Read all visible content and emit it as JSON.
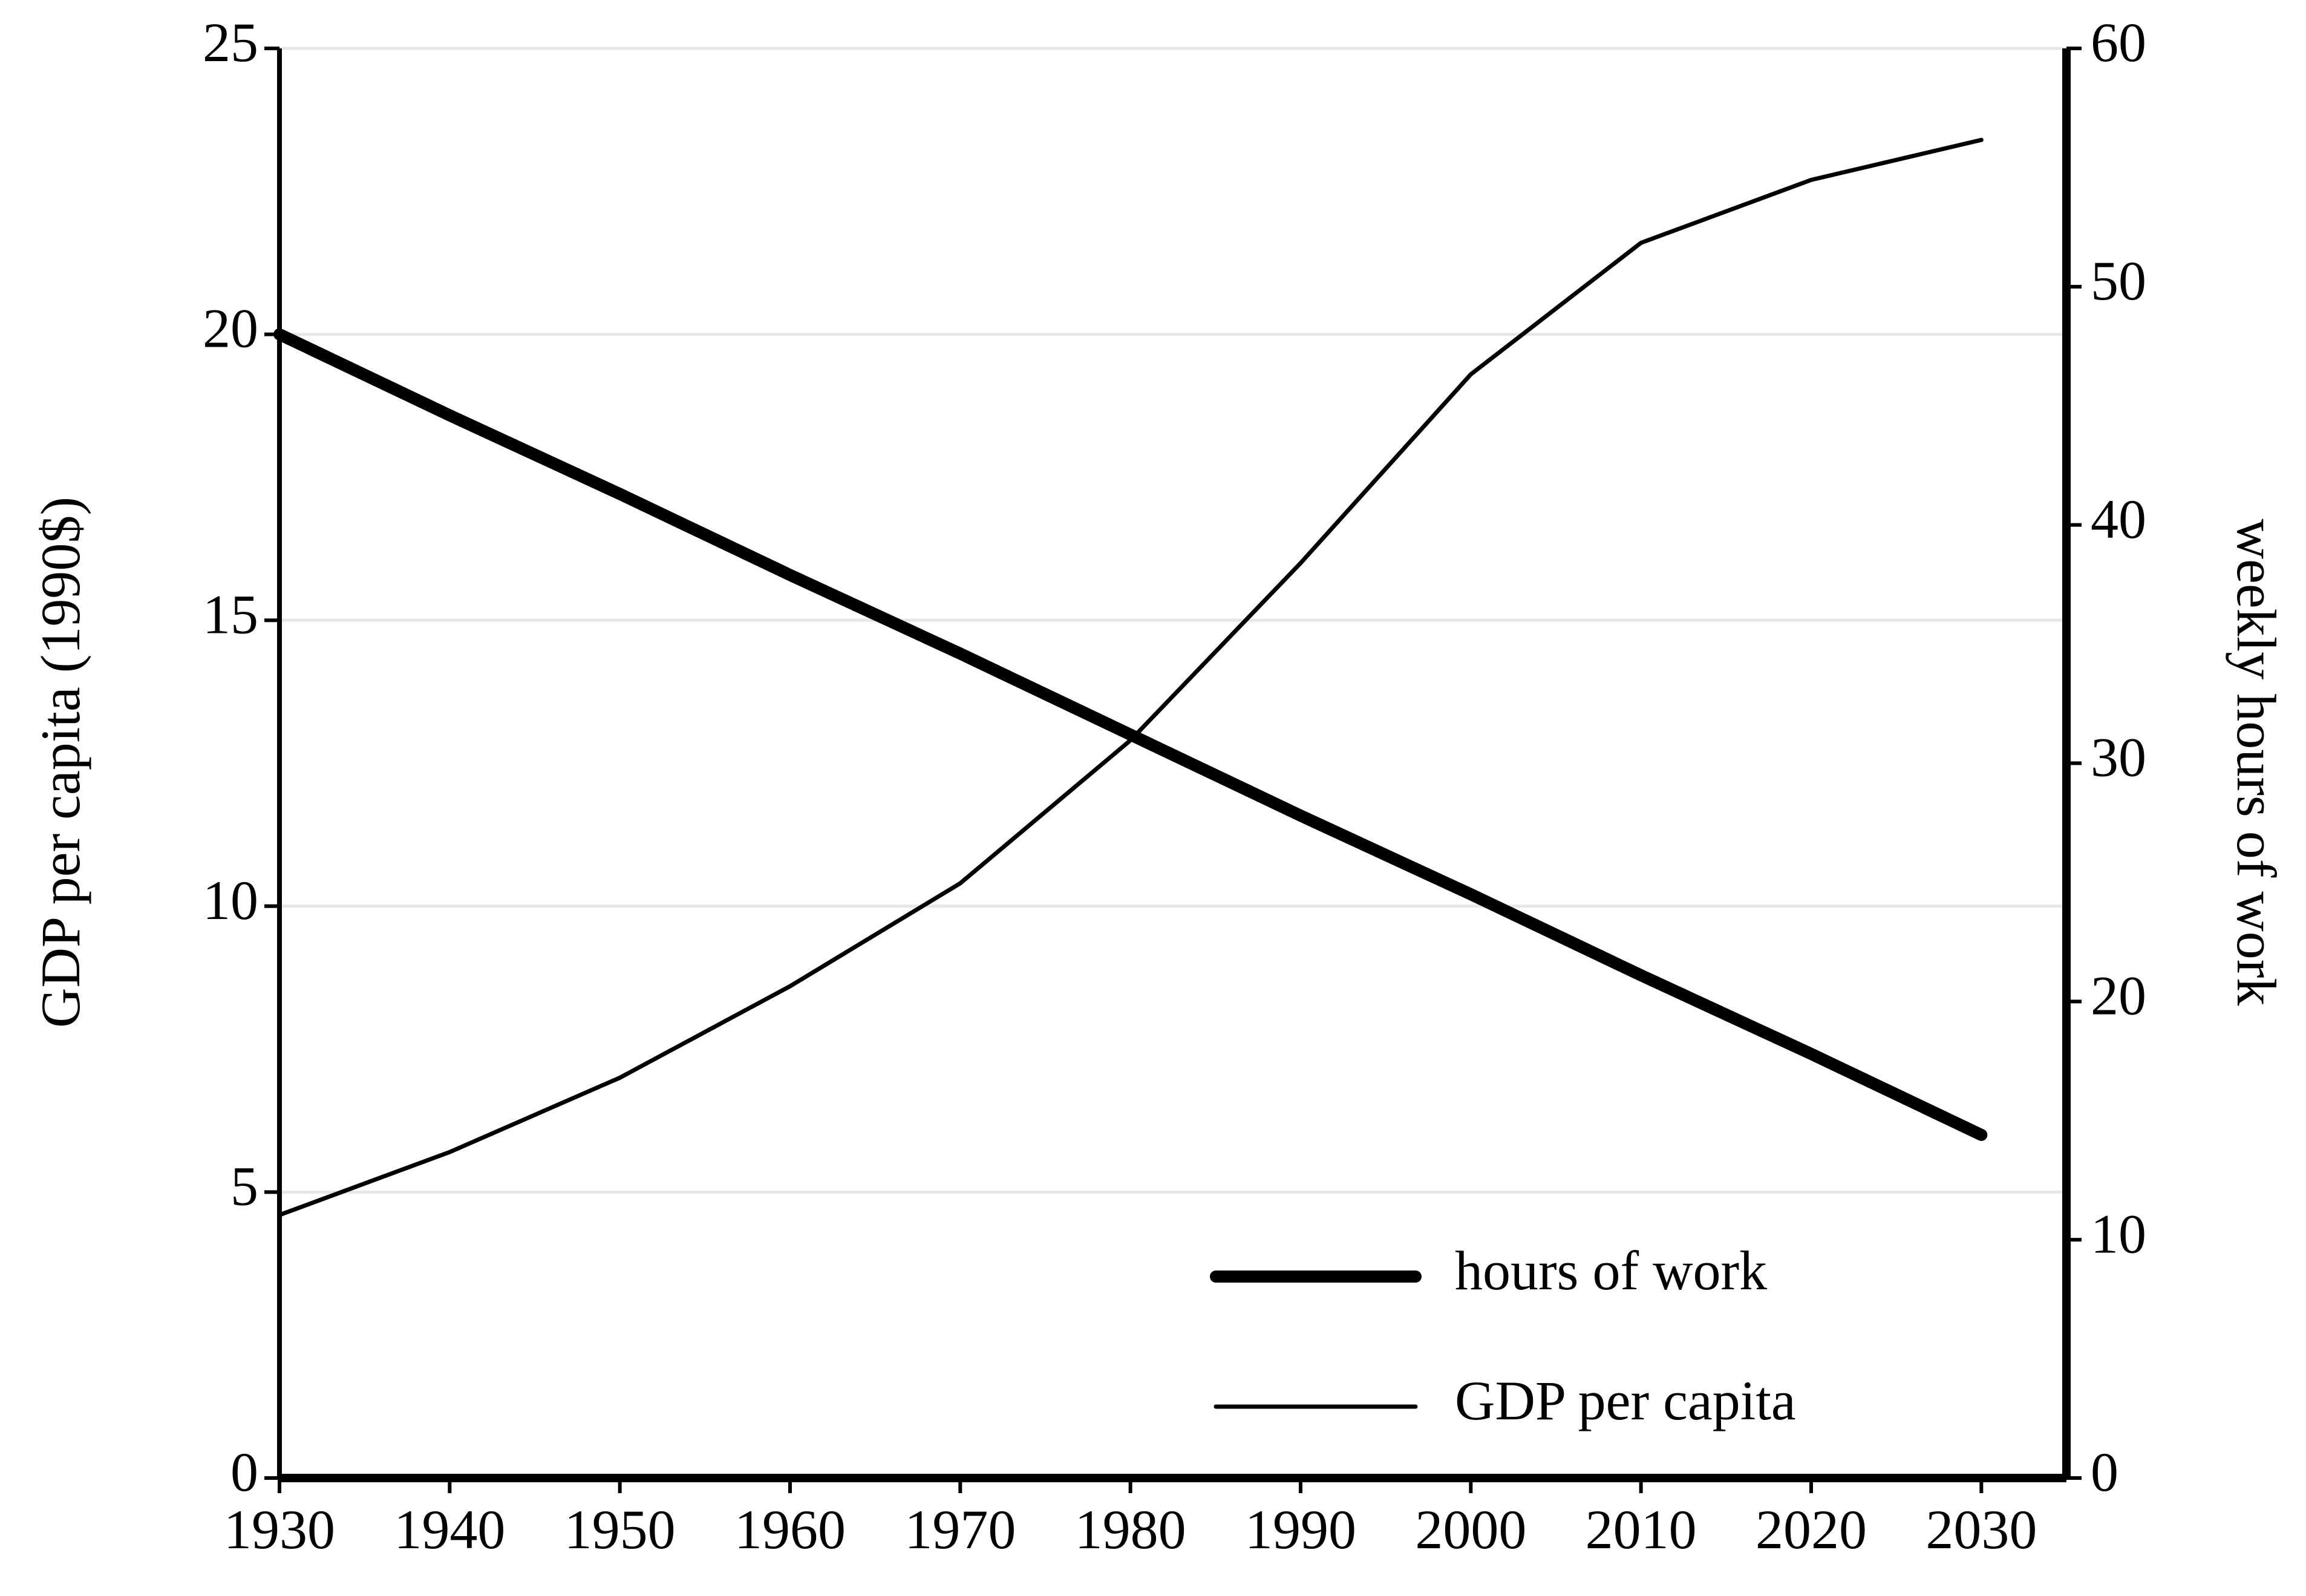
{
  "chart_data": {
    "type": "line",
    "x": [
      1930,
      1940,
      1950,
      1960,
      1970,
      1980,
      1990,
      2000,
      2010,
      2020,
      2030
    ],
    "xlim": [
      1930,
      2035
    ],
    "xticks": [
      1930,
      1940,
      1950,
      1960,
      1970,
      1980,
      1990,
      2000,
      2010,
      2020,
      2030
    ],
    "ylabel": "GDP per capita (1990$)",
    "ylim": [
      0,
      25
    ],
    "yticks": [
      0,
      5,
      10,
      15,
      20,
      25
    ],
    "y2label": "weekly hours of work",
    "y2lim": [
      0,
      60
    ],
    "y2ticks": [
      0,
      10,
      20,
      30,
      40,
      50,
      60
    ],
    "grid": true,
    "legend": "lower right",
    "series": [
      {
        "name": "hours of work",
        "color": "#000000",
        "linewidth": 20,
        "axis": "y2",
        "values": [
          48,
          44.6,
          41.3,
          37.9,
          34.6,
          31.2,
          27.8,
          24.5,
          21.1,
          17.8,
          14.4
        ]
      },
      {
        "name": "GDP per capita",
        "color": "#000000",
        "linewidth": 7,
        "values": [
          4.6,
          5.7,
          7.0,
          8.6,
          10.4,
          12.9,
          16.0,
          19.3,
          21.6,
          22.7,
          23.4
        ]
      }
    ]
  }
}
